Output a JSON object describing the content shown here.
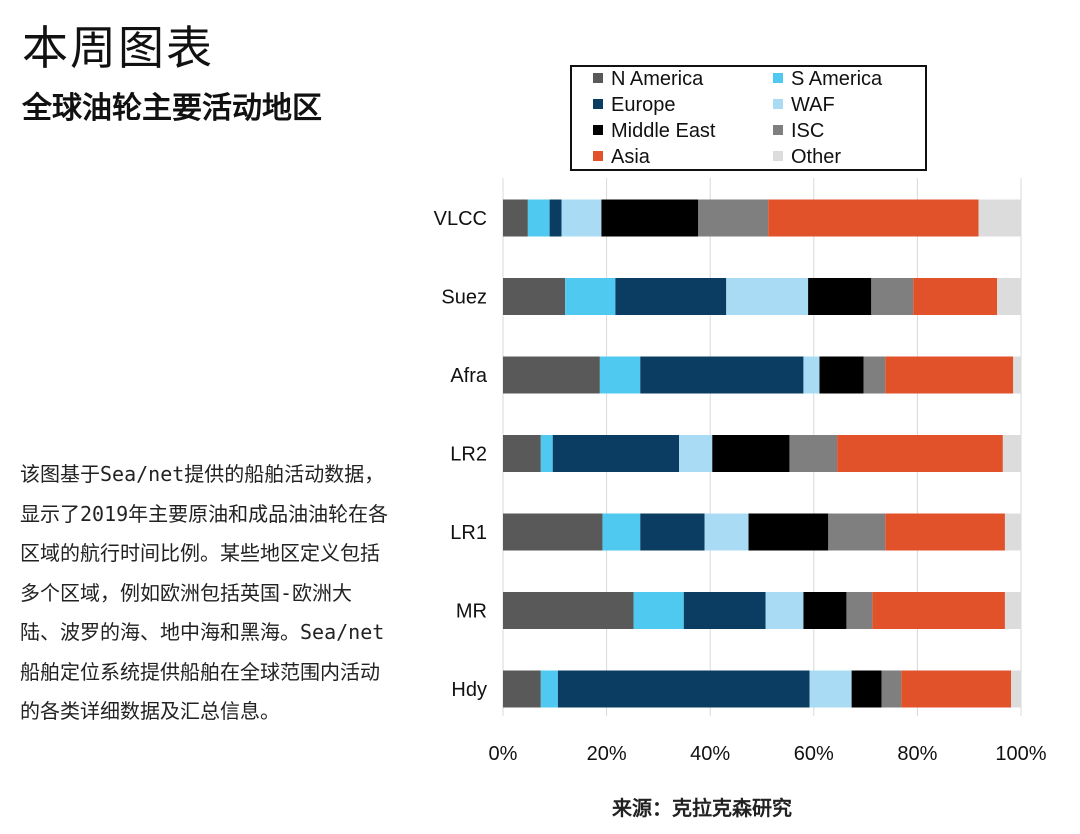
{
  "title": "本周图表",
  "subtitle": "全球油轮主要活动地区",
  "description": "该图基于Sea/net提供的船舶活动数据，显示了2019年主要原油和成品油油轮在各区域的航行时间比例。某些地区定义包括多个区域，例如欧洲包括英国-欧洲大陆、波罗的海、地中海和黑海。Sea/net船舶定位系统提供船舶在全球范围内活动的各类详细数据及汇总信息。",
  "source": "来源：克拉克森研究",
  "chart_data": {
    "type": "bar",
    "orientation": "horizontal",
    "stacked": true,
    "categories": [
      "VLCC",
      "Suez",
      "Afra",
      "LR2",
      "LR1",
      "MR",
      "Hdy"
    ],
    "xlim": [
      0,
      100
    ],
    "xticks": [
      "0%",
      "20%",
      "40%",
      "60%",
      "80%",
      "100%"
    ],
    "grid": true,
    "legend_position": "top",
    "series": [
      {
        "name": "N America",
        "color": "#595959",
        "values": [
          4.8,
          12.0,
          18.7,
          7.3,
          19.2,
          25.2,
          7.3
        ]
      },
      {
        "name": "S America",
        "color": "#4fc9ef",
        "values": [
          4.2,
          9.7,
          7.8,
          2.3,
          7.3,
          9.7,
          3.3
        ]
      },
      {
        "name": "Europe",
        "color": "#0b3c61",
        "values": [
          2.3,
          21.4,
          31.5,
          24.4,
          12.4,
          15.8,
          48.6
        ]
      },
      {
        "name": "WAF",
        "color": "#a9dcf4",
        "values": [
          7.7,
          15.8,
          3.1,
          6.4,
          8.5,
          7.3,
          8.1
        ]
      },
      {
        "name": "Middle East",
        "color": "#000000",
        "values": [
          18.7,
          12.2,
          8.5,
          14.9,
          15.4,
          8.3,
          5.8
        ]
      },
      {
        "name": "ISC",
        "color": "#7f7f7f",
        "values": [
          13.5,
          8.1,
          4.2,
          9.2,
          11.0,
          5.0,
          3.8
        ]
      },
      {
        "name": "Asia",
        "color": "#e2522a",
        "values": [
          40.6,
          16.2,
          24.7,
          32.0,
          23.1,
          25.6,
          21.2
        ]
      },
      {
        "name": "Other",
        "color": "#dcdcdc",
        "values": [
          8.2,
          4.6,
          1.5,
          3.5,
          3.1,
          3.1,
          1.9
        ]
      }
    ]
  }
}
